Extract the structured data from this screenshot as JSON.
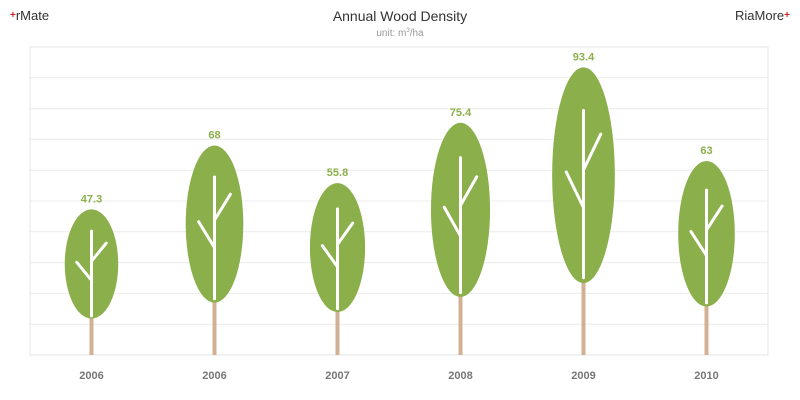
{
  "brand": {
    "left_name": "rMate",
    "right_name": "RiaMore",
    "plus_symbol": "+"
  },
  "header": {
    "title": "Annual Wood Density",
    "subtitle_prefix": "unit: m",
    "subtitle_sup": "3",
    "subtitle_suffix": "/ha"
  },
  "colors": {
    "foliage": "#8aaf4b",
    "trunk": "#d2b193",
    "branch": "#ffffff",
    "label": "#8aaf4b",
    "grid": "#ececec",
    "border": "#e4e4e4"
  },
  "chart_data": {
    "type": "bar",
    "title": "Annual Wood Density",
    "subtitle": "unit: m³/ha",
    "categories": [
      "2006",
      "2006",
      "2007",
      "2008",
      "2009",
      "2010"
    ],
    "values": [
      47.3,
      68,
      55.8,
      75.4,
      93.4,
      63
    ],
    "value_labels": [
      "47.3",
      "68",
      "55.8",
      "75.4",
      "93.4",
      "63"
    ],
    "xlabel": "",
    "ylabel": "",
    "ylim": [
      0,
      100
    ],
    "grid": true,
    "legend": "none"
  }
}
